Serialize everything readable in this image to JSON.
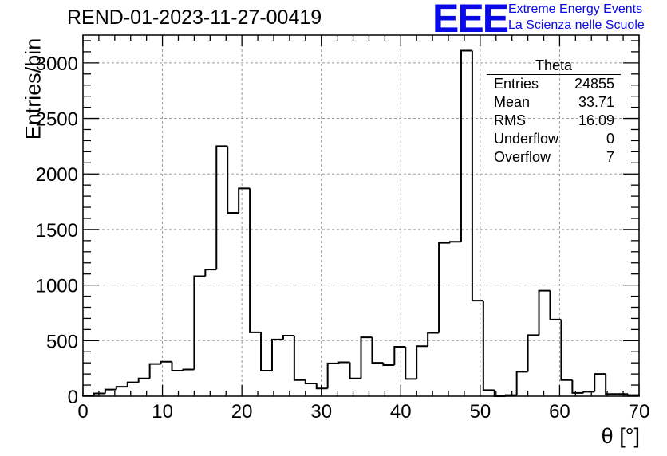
{
  "title": "REND-01-2023-11-27-00419",
  "logo": {
    "mark": "EEE",
    "line1": "Extreme Energy Events",
    "line2": "La Scienza nelle Scuole",
    "color": "#0a0ae6"
  },
  "stats": {
    "title": "Theta",
    "rows": [
      {
        "label": "Entries",
        "value": "24855"
      },
      {
        "label": "Mean",
        "value": "33.71"
      },
      {
        "label": "RMS",
        "value": "16.09"
      },
      {
        "label": "Underflow",
        "value": "0"
      },
      {
        "label": "Overflow",
        "value": "7"
      }
    ]
  },
  "chart_data": {
    "type": "histogram",
    "xlabel": "θ [°]",
    "ylabel": "Entries/bin",
    "xlim": [
      0,
      70
    ],
    "ylim": [
      0,
      3250
    ],
    "grid": true,
    "line_color": "#000000",
    "x_ticks": [
      0,
      10,
      20,
      30,
      40,
      50,
      60,
      70
    ],
    "y_ticks": [
      0,
      500,
      1000,
      1500,
      2000,
      2500,
      3000
    ],
    "bin_edges": [
      0,
      1.4,
      2.8,
      4.2,
      5.6,
      7,
      8.4,
      9.8,
      11.2,
      12.6,
      14,
      15.4,
      16.8,
      18.2,
      19.6,
      21,
      22.4,
      23.8,
      25.2,
      26.6,
      28,
      29.4,
      30.8,
      32.2,
      33.6,
      35,
      36.4,
      37.8,
      39.2,
      40.6,
      42,
      43.4,
      44.8,
      46.2,
      47.6,
      49,
      50.4,
      51.8,
      53.2,
      54.6,
      56,
      57.4,
      58.8,
      60.2,
      61.6,
      63,
      64.4,
      65.8,
      67.2,
      68.6,
      70
    ],
    "values": [
      5,
      25,
      60,
      85,
      125,
      160,
      290,
      310,
      230,
      240,
      1080,
      1140,
      2250,
      1650,
      1870,
      575,
      230,
      510,
      545,
      145,
      115,
      70,
      295,
      305,
      160,
      530,
      300,
      280,
      445,
      155,
      450,
      570,
      1380,
      1390,
      3110,
      860,
      55,
      0,
      10,
      220,
      550,
      950,
      690,
      145,
      30,
      40,
      200,
      20,
      20,
      10
    ]
  }
}
